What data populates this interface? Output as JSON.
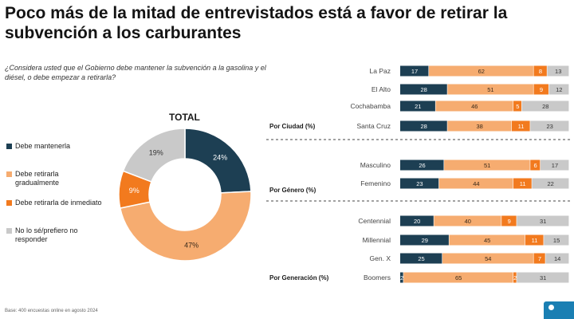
{
  "title": "Poco más de la mitad de entrevistados está a favor de retirar la subvención a los carburantes",
  "question": "¿Considera usted que el Gobierno debe mantener la subvención a la gasolina y el diésel, o debe empezar a retirarla?",
  "footer": "Base: 400 encuestas online en agosto 2024",
  "colors": {
    "mantener": "#1d3f53",
    "gradual": "#f6ac70",
    "inmediato": "#f27a1e",
    "nosabe": "#c9c9c9"
  },
  "legend": [
    {
      "label": "Debe mantenerla",
      "color": "#1d3f53"
    },
    {
      "label": "Debe retirarla gradualmente",
      "color": "#f6ac70"
    },
    {
      "label": "Debe retirarla de inmediato",
      "color": "#f27a1e"
    },
    {
      "label": "No lo sé/prefiero no responder",
      "color": "#c9c9c9"
    }
  ],
  "chart_data": [
    {
      "type": "pie",
      "title": "TOTAL",
      "categories": [
        "Debe mantenerla",
        "Debe retirarla gradualmente",
        "Debe retirarla de inmediato",
        "No lo sé/prefiero no responder"
      ],
      "values": [
        24,
        47,
        9,
        19
      ],
      "labels": [
        "24%",
        "47%",
        "9%",
        "19%"
      ]
    },
    {
      "type": "bar",
      "stacked": true,
      "orientation": "horizontal",
      "series_names": [
        "Debe mantenerla",
        "Debe retirarla gradualmente",
        "Debe retirarla de inmediato",
        "No lo sé/prefiero no responder"
      ],
      "groups": [
        {
          "label": "Por Ciudad (%)",
          "rows": [
            {
              "category": "La Paz",
              "values": [
                17,
                62,
                8,
                13
              ]
            },
            {
              "category": "El Alto",
              "values": [
                28,
                51,
                9,
                12
              ]
            },
            {
              "category": "Cochabamba",
              "values": [
                21,
                46,
                5,
                28
              ]
            },
            {
              "category": "Santa Cruz",
              "values": [
                28,
                38,
                11,
                23
              ]
            }
          ]
        },
        {
          "label": "Por Género (%)",
          "rows": [
            {
              "category": "Masculino",
              "values": [
                26,
                51,
                6,
                17
              ]
            },
            {
              "category": "Femenino",
              "values": [
                23,
                44,
                11,
                22
              ]
            }
          ]
        },
        {
          "label": "Por Generación (%)",
          "rows": [
            {
              "category": "Centennial",
              "values": [
                20,
                40,
                9,
                31
              ]
            },
            {
              "category": "Millennial",
              "values": [
                29,
                45,
                11,
                15
              ]
            },
            {
              "category": "Gen. X",
              "values": [
                25,
                54,
                7,
                14
              ]
            },
            {
              "category": "Boomers",
              "values": [
                2,
                65,
                2,
                31
              ]
            }
          ]
        }
      ],
      "xlim": [
        0,
        100
      ]
    }
  ]
}
